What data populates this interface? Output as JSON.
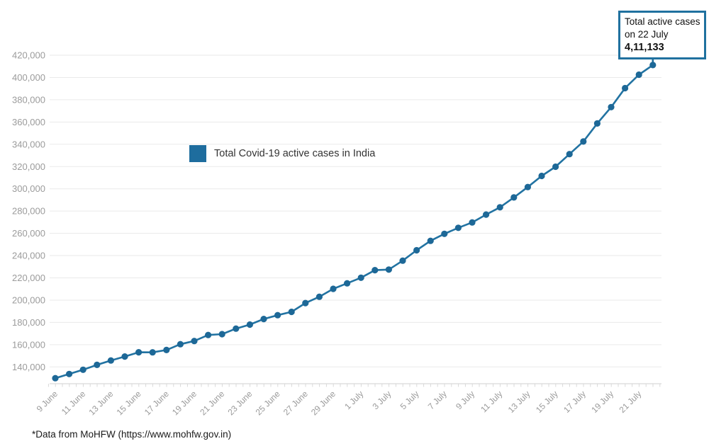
{
  "chart_data": {
    "type": "line",
    "title": "",
    "xlabel": "",
    "ylabel": "",
    "x": [
      "9 June",
      "10 June",
      "11 June",
      "12 June",
      "13 June",
      "14 June",
      "15 June",
      "16 June",
      "17 June",
      "18 June",
      "19 June",
      "20 June",
      "21 June",
      "22 June",
      "23 June",
      "24 June",
      "25 June",
      "26 June",
      "27 June",
      "28 June",
      "29 June",
      "30 June",
      "1 July",
      "2 July",
      "3 July",
      "4 July",
      "5 July",
      "6 July",
      "7 July",
      "8 July",
      "9 July",
      "10 July",
      "11 July",
      "12 July",
      "13 July",
      "14 July",
      "15 July",
      "16 July",
      "17 July",
      "18 July",
      "19 July",
      "20 July",
      "21 July",
      "22 July"
    ],
    "series": [
      {
        "name": "Total Covid-19 active cases in India",
        "values": [
          129917,
          133632,
          137448,
          141842,
          145779,
          149348,
          153178,
          153106,
          155227,
          160384,
          163248,
          168686,
          169451,
          174387,
          178014,
          183022,
          186514,
          189463,
          197387,
          203051,
          210120,
          215125,
          220114,
          226947,
          227439,
          235433,
          244814,
          253287,
          259557,
          264944,
          269789,
          276882,
          283407,
          292258,
          301609,
          311565,
          319840,
          331146,
          342473,
          358692,
          373379,
          390459,
          402529,
          411133
        ]
      }
    ],
    "x_tick_every": 2,
    "x_tick_labels": [
      "9 June",
      "11 June",
      "13 June",
      "15 June",
      "17 June",
      "19 June",
      "21 June",
      "23 June",
      "25 June",
      "27 June",
      "29 June",
      "1 July",
      "3 July",
      "5 July",
      "7 July",
      "9 July",
      "11 July",
      "13 July",
      "15 July",
      "17 July",
      "19 July",
      "21 July"
    ],
    "y_ticks": [
      140000,
      160000,
      180000,
      200000,
      220000,
      240000,
      260000,
      280000,
      300000,
      320000,
      340000,
      360000,
      380000,
      400000,
      420000
    ],
    "ylim": [
      124900,
      420000
    ],
    "grid": "horizontal",
    "markers": true,
    "legend_position": "inside-upper-left"
  },
  "legend": {
    "label": "Total Covid-19 active cases in India"
  },
  "callout": {
    "line1": "Total active cases",
    "line2": "on 22 July",
    "value": "4,11,133",
    "anchor_x": "22 July"
  },
  "footnote": "*Data from MoHFW (https://www.mohfw.gov.in)",
  "colors": {
    "line": "#2273a2",
    "marker": "#1d6897",
    "legend_swatch": "#1e6d9e",
    "grid": "#eaeaea",
    "axis_line": "#cfcfcf",
    "axis_tick": "#d9d9d9",
    "axis_label": "#9b9b9b",
    "legend_text": "#333333",
    "callout_border": "#20719f",
    "callout_text": "#111111",
    "background": "#ffffff"
  }
}
